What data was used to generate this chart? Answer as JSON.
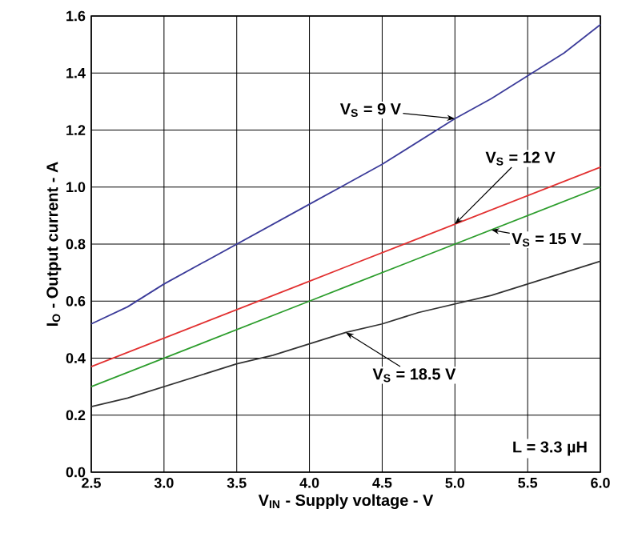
{
  "chart_data": {
    "type": "line",
    "xlabel": "V$_{IN}$ - Supply voltage - V",
    "ylabel": "I$_{O}$ - Output current - A",
    "annotations": [
      "L = 3.3 µH"
    ],
    "x": [
      2.5,
      2.75,
      3.0,
      3.25,
      3.5,
      3.75,
      4.0,
      4.25,
      4.5,
      4.75,
      5.0,
      5.25,
      5.5,
      5.75,
      6.0
    ],
    "series": [
      {
        "name": "V$_{S}$ = 9 V",
        "color": "#3c3c9a",
        "values": [
          0.52,
          0.58,
          0.66,
          0.73,
          0.8,
          0.87,
          0.94,
          1.01,
          1.08,
          1.16,
          1.24,
          1.31,
          1.39,
          1.47,
          1.57
        ]
      },
      {
        "name": "V$_{S}$ = 12 V",
        "color": "#e23232",
        "values": [
          0.37,
          0.42,
          0.47,
          0.52,
          0.57,
          0.62,
          0.67,
          0.72,
          0.77,
          0.82,
          0.87,
          0.92,
          0.97,
          1.02,
          1.07
        ]
      },
      {
        "name": "V$_{S}$ = 15 V",
        "color": "#2e9e2e",
        "values": [
          0.3,
          0.35,
          0.4,
          0.45,
          0.5,
          0.55,
          0.6,
          0.65,
          0.7,
          0.75,
          0.8,
          0.85,
          0.9,
          0.95,
          1.0
        ]
      },
      {
        "name": "V$_{S}$ = 18.5 V",
        "color": "#333333",
        "values": [
          0.23,
          0.26,
          0.3,
          0.34,
          0.38,
          0.41,
          0.45,
          0.49,
          0.52,
          0.56,
          0.59,
          0.62,
          0.66,
          0.7,
          0.74
        ]
      }
    ],
    "xlim": [
      2.5,
      6.0
    ],
    "ylim": [
      0,
      1.6
    ],
    "xticks": [
      {
        "value": 2.5,
        "label": "2.5"
      },
      {
        "value": 3,
        "label": "3.0"
      },
      {
        "value": 3.5,
        "label": "3.5"
      },
      {
        "value": 4,
        "label": "4.0"
      },
      {
        "value": 4.5,
        "label": "4.5"
      },
      {
        "value": 5,
        "label": "5.0"
      },
      {
        "value": 5.5,
        "label": "5.5"
      },
      {
        "value": 6,
        "label": "6.0"
      }
    ],
    "yticks": [
      {
        "value": 0,
        "label": "0.0"
      },
      {
        "value": 0.2,
        "label": "0.2"
      },
      {
        "value": 0.4,
        "label": "0.4"
      },
      {
        "value": 0.6,
        "label": "0.6"
      },
      {
        "value": 0.8,
        "label": "0.8"
      },
      {
        "value": 1,
        "label": "1.0"
      },
      {
        "value": 1.2,
        "label": "1.2"
      },
      {
        "value": 1.4,
        "label": "1.4"
      },
      {
        "value": 1.6,
        "label": "1.6"
      }
    ],
    "grid": true,
    "legend": false,
    "marker": "none",
    "line_style": "solid"
  }
}
